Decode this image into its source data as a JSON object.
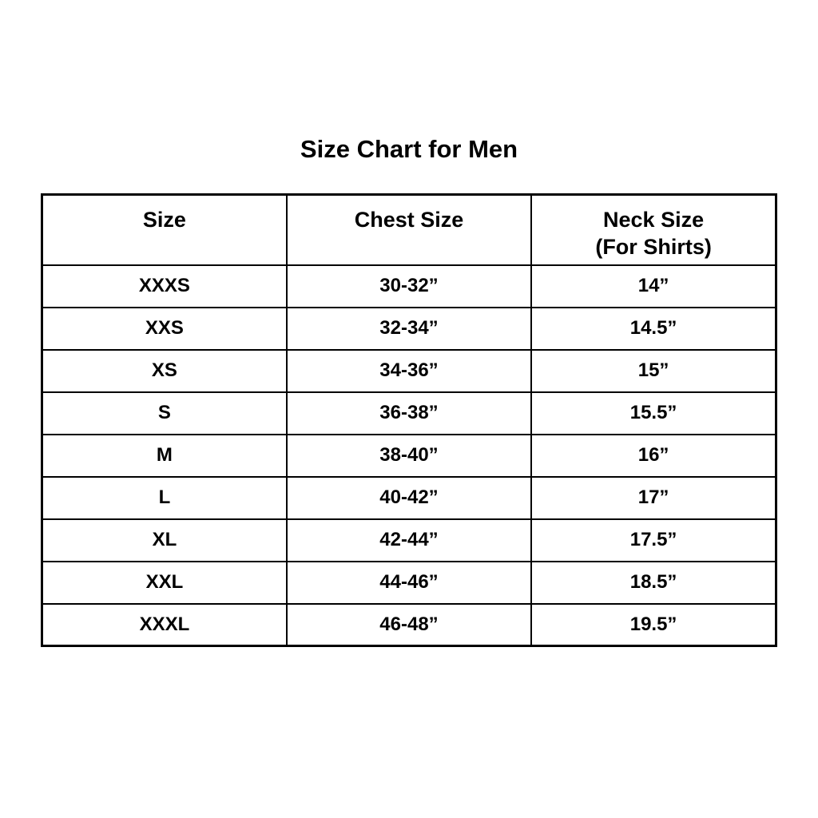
{
  "title": "Size Chart for Men",
  "colors": {
    "background": "#ffffff",
    "text": "#000000",
    "border": "#000000"
  },
  "chart_data": {
    "type": "table",
    "title": "Size Chart for Men",
    "columns": [
      {
        "label": "Size",
        "sublabel": ""
      },
      {
        "label": "Chest Size",
        "sublabel": ""
      },
      {
        "label": "Neck Size",
        "sublabel": "(For Shirts)"
      }
    ],
    "rows": [
      [
        "XXXS",
        "30-32”",
        "14”"
      ],
      [
        "XXS",
        "32-34”",
        "14.5”"
      ],
      [
        "XS",
        "34-36”",
        "15”"
      ],
      [
        "S",
        "36-38”",
        "15.5”"
      ],
      [
        "M",
        "38-40”",
        "16”"
      ],
      [
        "L",
        "40-42”",
        "17”"
      ],
      [
        "XL",
        "42-44”",
        "17.5”"
      ],
      [
        "XXL",
        "44-46”",
        "18.5”"
      ],
      [
        "XXXL",
        "46-48”",
        "19.5”"
      ]
    ]
  }
}
